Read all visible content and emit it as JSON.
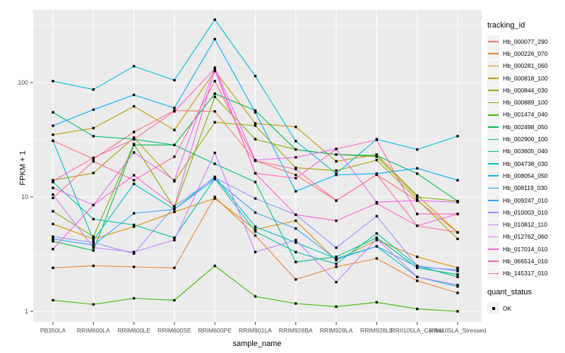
{
  "figure": {
    "y_axis_title": "FPKM + 1",
    "x_axis_title": "sample_name",
    "tracking_legend_title": "tracking_id",
    "quant_legend_title": "quant_status",
    "quant_status_label": "OK"
  },
  "style": {
    "panel_bg": "#EBEBEB",
    "grid_color": "#FFFFFF",
    "tick_text_color": "#4D4D4D",
    "point_color": "#000000",
    "legend_key_bg": "#F2F2F2"
  },
  "chart_data": {
    "type": "line",
    "title": "",
    "xlabel": "sample_name",
    "ylabel": "FPKM + 1",
    "y_scale": "log10",
    "y_ticks": [
      1,
      10,
      100
    ],
    "y_minor_ticks": [
      3.162,
      31.62,
      316.2
    ],
    "ylim": [
      1,
      430
    ],
    "grid": true,
    "legend_position": "right",
    "point_marker": "black-square-quant-status-OK",
    "categories": [
      "PB350LA",
      "RRIM600LA",
      "RRIM600LE",
      "RRIM600SE",
      "RRIM600PE",
      "RRIM901LA",
      "RRIM928BA",
      "RRIM928LA",
      "RRIM928LE",
      "RRII105LA_Control",
      "RRII105LA_Stressed"
    ],
    "series": [
      {
        "name": "Hb_000077_290",
        "color": "#F8766D",
        "values": [
          31,
          21.5,
          37,
          57,
          56,
          20.7,
          15.6,
          9.3,
          15.7,
          9.3,
          4.9
        ]
      },
      {
        "name": "Hb_000226_070",
        "color": "#EA8331",
        "values": [
          2.4,
          2.5,
          2.45,
          2.4,
          10,
          4.6,
          1.9,
          2.45,
          2.9,
          1.85,
          1.45
        ]
      },
      {
        "name": "Hb_000281_060",
        "color": "#D89000",
        "values": [
          5.8,
          4.3,
          5.5,
          7.4,
          9.7,
          5.2,
          6.2,
          2.8,
          4.2,
          3.0,
          2.4
        ]
      },
      {
        "name": "Hb_000818_100",
        "color": "#C09B00",
        "values": [
          35,
          40,
          62,
          38.5,
          126,
          44,
          41,
          20.5,
          23.5,
          10.3,
          4.9
        ]
      },
      {
        "name": "Hb_000844_030",
        "color": "#A3A500",
        "values": [
          14,
          16.2,
          33,
          13.7,
          45,
          42,
          18,
          17,
          21,
          9.5,
          4.3
        ]
      },
      {
        "name": "Hb_000889_100",
        "color": "#7CAE00",
        "values": [
          7.5,
          4.5,
          29,
          8.0,
          75,
          32,
          26,
          23.5,
          22.5,
          10.0,
          9.2
        ]
      },
      {
        "name": "Hb_001474_040",
        "color": "#39B600",
        "values": [
          1.25,
          1.15,
          1.3,
          1.25,
          2.5,
          1.35,
          1.17,
          1.1,
          1.2,
          1.05,
          1.0
        ]
      },
      {
        "name": "Hb_002498_050",
        "color": "#00BB4E",
        "values": [
          4.1,
          3.4,
          28.5,
          28.5,
          80,
          57,
          26,
          23.5,
          23,
          16,
          9.2
        ]
      },
      {
        "name": "Hb_002900_100",
        "color": "#00BF7D",
        "values": [
          55,
          34,
          32,
          28.5,
          19.5,
          13.5,
          2.7,
          3.0,
          4.4,
          2.4,
          2.1
        ]
      },
      {
        "name": "Hb_003605_040",
        "color": "#00C1A3",
        "values": [
          13.5,
          6.4,
          5.7,
          4.4,
          14.5,
          5.0,
          3.3,
          2.6,
          4.8,
          2.5,
          2.0
        ]
      },
      {
        "name": "Hb_004738_030",
        "color": "#00BFC4",
        "values": [
          31,
          4.2,
          13,
          7.8,
          15,
          5.5,
          4.0,
          2.9,
          3.7,
          2.0,
          1.65
        ]
      },
      {
        "name": "Hb_008054_050",
        "color": "#00BAE0",
        "values": [
          103,
          87,
          139,
          105,
          355,
          114,
          30.8,
          16,
          32,
          26,
          34
        ]
      },
      {
        "name": "Hb_008119_030",
        "color": "#00B0F6",
        "values": [
          42,
          58,
          78,
          60,
          240,
          55,
          11.2,
          15.6,
          16,
          17.8,
          14
        ]
      },
      {
        "name": "Hb_009247_010",
        "color": "#35A2FF",
        "values": [
          4.3,
          3.8,
          7.2,
          7.8,
          14.3,
          7.3,
          5.3,
          2.85,
          3.7,
          2.45,
          2.3
        ]
      },
      {
        "name": "Hb_010003_010",
        "color": "#9590FF",
        "values": [
          4.5,
          4.0,
          3.2,
          8.3,
          14.7,
          9.7,
          7.0,
          3.6,
          6.8,
          2.5,
          2.25
        ]
      },
      {
        "name": "Hb_010812_110",
        "color": "#C77CFF",
        "values": [
          10.5,
          3.6,
          3.3,
          4.2,
          24.3,
          3.3,
          4.2,
          1.8,
          4.3,
          2.0,
          1.7
        ]
      },
      {
        "name": "Hb_012762_060",
        "color": "#E76BF3",
        "values": [
          12,
          8.5,
          24.5,
          14,
          135,
          21,
          22.2,
          26.3,
          9.0,
          9.3,
          9.0
        ]
      },
      {
        "name": "Hb_017014_010",
        "color": "#FA62DB",
        "values": [
          3.5,
          8.5,
          15.5,
          8.3,
          128,
          16.1,
          7.0,
          6.2,
          8.8,
          5.6,
          7.1
        ]
      },
      {
        "name": "Hb_066514_010",
        "color": "#FF62BC",
        "values": [
          13.8,
          22,
          32,
          56,
          132,
          16.1,
          14.6,
          26.3,
          31.6,
          7.1,
          7.1
        ]
      },
      {
        "name": "Hb_145317_010",
        "color": "#FF6A98",
        "values": [
          9.8,
          20.5,
          14,
          22.5,
          103,
          20.7,
          17.5,
          9.3,
          15.7,
          5.6,
          4.9
        ]
      }
    ]
  }
}
